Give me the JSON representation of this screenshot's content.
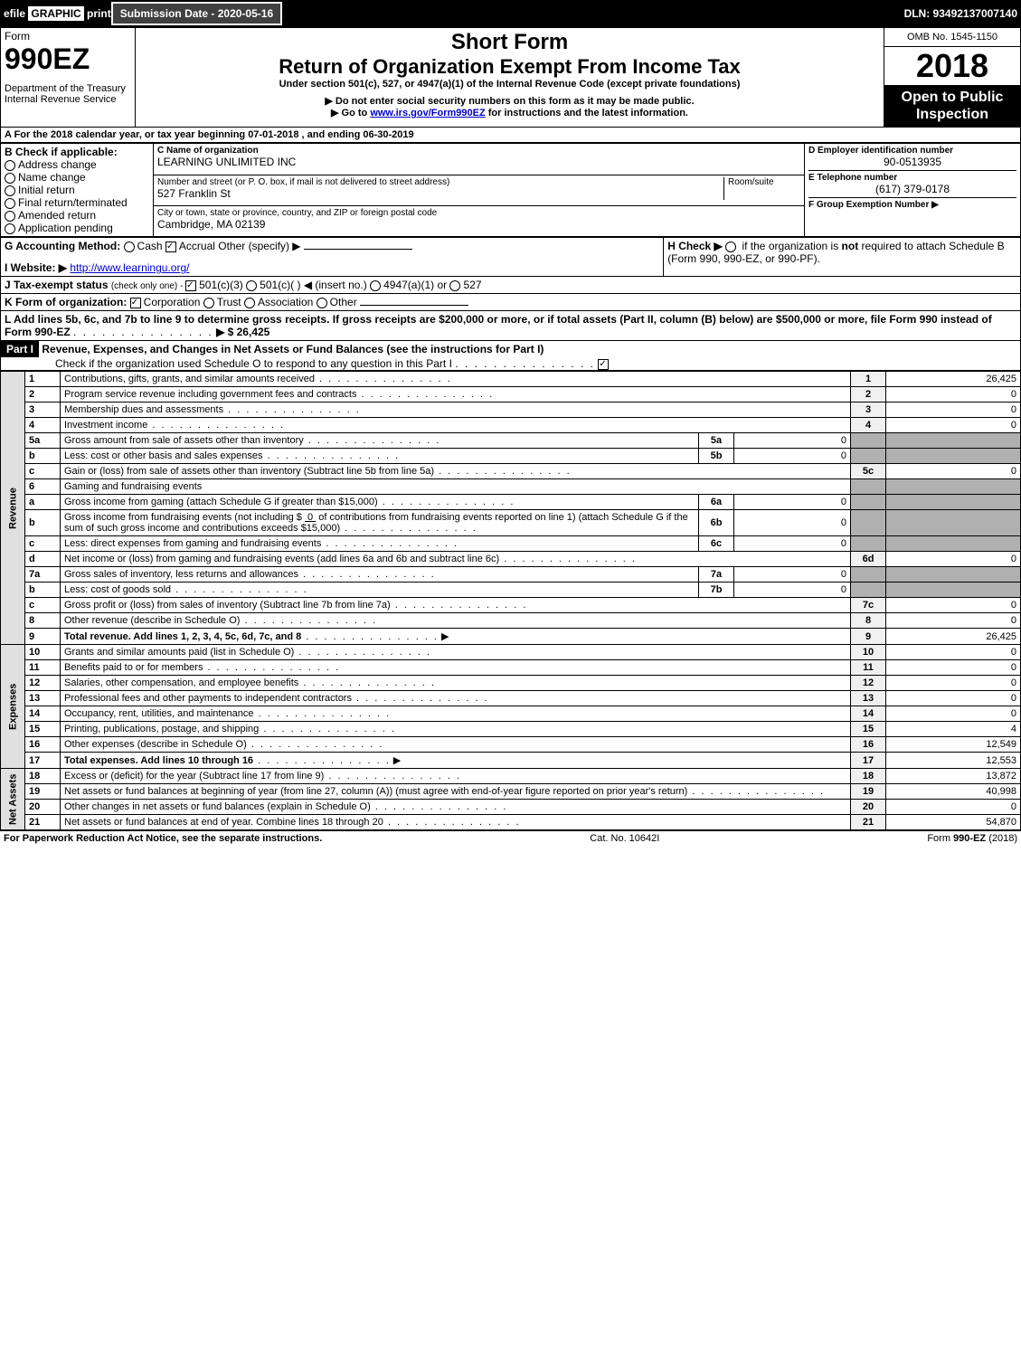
{
  "top": {
    "efile_prefix": "efile",
    "graphic": "GRAPHIC",
    "print": "print",
    "submission_label": "Submission Date - 2020-05-16",
    "dln_label": "DLN: 93492137007140"
  },
  "header": {
    "form_word": "Form",
    "form_no": "990EZ",
    "dept1": "Department of the Treasury",
    "dept2": "Internal Revenue Service",
    "short_form": "Short Form",
    "title": "Return of Organization Exempt From Income Tax",
    "subtitle": "Under section 501(c), 527, or 4947(a)(1) of the Internal Revenue Code (except private foundations)",
    "warn1": "▶ Do not enter social security numbers on this form as it may be made public.",
    "warn2_pre": "▶ Go to ",
    "warn2_link": "www.irs.gov/Form990EZ",
    "warn2_post": " for instructions and the latest information.",
    "omb": "OMB No. 1545-1150",
    "year": "2018",
    "open": "Open to Public Inspection"
  },
  "period": {
    "line": "A  For the 2018 calendar year, or tax year beginning 07-01-2018               , and ending 06-30-2019"
  },
  "boxB": {
    "label": "B  Check if applicable:",
    "options": [
      {
        "label": "Address change",
        "checked": false
      },
      {
        "label": "Name change",
        "checked": false
      },
      {
        "label": "Initial return",
        "checked": false
      },
      {
        "label": "Final return/terminated",
        "checked": false
      },
      {
        "label": "Amended return",
        "checked": false
      },
      {
        "label": "Application pending",
        "checked": false
      }
    ]
  },
  "boxC": {
    "name_label": "C Name of organization",
    "name_value": "LEARNING UNLIMITED INC",
    "street_label": "Number and street (or P. O. box, if mail is not delivered to street address)",
    "room_label": "Room/suite",
    "street_value": "527 Franklin St",
    "city_label": "City or town, state or province, country, and ZIP or foreign postal code",
    "city_value": "Cambridge, MA  02139"
  },
  "boxD": {
    "label": "D Employer identification number",
    "value": "90-0513935"
  },
  "boxE": {
    "label": "E Telephone number",
    "value": "(617) 379-0178"
  },
  "boxF": {
    "label": "F Group Exemption Number   ▶"
  },
  "lineG": {
    "label": "G Accounting Method:",
    "cash": "Cash",
    "accrual": "Accrual",
    "other": "Other (specify) ▶",
    "accrual_checked": true
  },
  "lineH": {
    "label": "H  Check ▶",
    "text1": "if the organization is ",
    "not": "not",
    "text2": " required to attach Schedule B (Form 990, 990-EZ, or 990-PF)."
  },
  "lineI": {
    "label": "I Website: ▶",
    "url": "http://www.learningu.org/"
  },
  "lineJ": {
    "label": "J Tax-exempt status",
    "hint": " (check only one) - ",
    "opt1": "501(c)(3)",
    "opt2": "501(c)( )",
    "insert": "◀ (insert no.)",
    "opt3": "4947(a)(1) or",
    "opt4": "527",
    "opt1_checked": true
  },
  "lineK": {
    "label": "K Form of organization:",
    "opts": [
      "Corporation",
      "Trust",
      "Association",
      "Other"
    ],
    "corp_checked": true
  },
  "lineL": {
    "text": "L Add lines 5b, 6c, and 7b to line 9 to determine gross receipts. If gross receipts are $200,000 or more, or if total assets (Part II, column (B) below) are $500,000 or more, file Form 990 instead of Form 990-EZ",
    "arrow": "▶ $ 26,425"
  },
  "part1": {
    "label": "Part I",
    "title": "Revenue, Expenses, and Changes in Net Assets or Fund Balances (see the instructions for Part I)",
    "check_text": "Check if the organization used Schedule O to respond to any question in this Part I",
    "checked": true
  },
  "sections": {
    "revenue_label": "Revenue",
    "expenses_label": "Expenses",
    "netassets_label": "Net Assets"
  },
  "lines": [
    {
      "n": "1",
      "desc": "Contributions, gifts, grants, and similar amounts received",
      "ln": "1",
      "val": "26,425"
    },
    {
      "n": "2",
      "desc": "Program service revenue including government fees and contracts",
      "ln": "2",
      "val": "0"
    },
    {
      "n": "3",
      "desc": "Membership dues and assessments",
      "ln": "3",
      "val": "0"
    },
    {
      "n": "4",
      "desc": "Investment income",
      "ln": "4",
      "val": "0"
    },
    {
      "n": "5a",
      "desc": "Gross amount from sale of assets other than inventory",
      "sub": "5a",
      "subval": "0"
    },
    {
      "n": "b",
      "desc": "Less: cost or other basis and sales expenses",
      "sub": "5b",
      "subval": "0"
    },
    {
      "n": "c",
      "desc": "Gain or (loss) from sale of assets other than inventory (Subtract line 5b from line 5a)",
      "ln": "5c",
      "val": "0"
    },
    {
      "n": "6",
      "desc": "Gaming and fundraising events"
    },
    {
      "n": "a",
      "desc": "Gross income from gaming (attach Schedule G if greater than $15,000)",
      "sub": "6a",
      "subval": "0"
    },
    {
      "n": "b",
      "desc_html": "Gross income from fundraising events (not including $ <u>&nbsp;0&nbsp;</u>              of contributions from fundraising events reported on line 1) (attach Schedule G if the sum of such gross income and contributions exceeds $15,000)",
      "sub": "6b",
      "subval": "0"
    },
    {
      "n": "c",
      "desc": "Less: direct expenses from gaming and fundraising events",
      "sub": "6c",
      "subval": "0"
    },
    {
      "n": "d",
      "desc": "Net income or (loss) from gaming and fundraising events (add lines 6a and 6b and subtract line 6c)",
      "ln": "6d",
      "val": "0"
    },
    {
      "n": "7a",
      "desc": "Gross sales of inventory, less returns and allowances",
      "sub": "7a",
      "subval": "0"
    },
    {
      "n": "b",
      "desc": "Less: cost of goods sold",
      "sub": "7b",
      "subval": "0"
    },
    {
      "n": "c",
      "desc": "Gross profit or (loss) from sales of inventory (Subtract line 7b from line 7a)",
      "ln": "7c",
      "val": "0"
    },
    {
      "n": "8",
      "desc": "Other revenue (describe in Schedule O)",
      "ln": "8",
      "val": "0"
    },
    {
      "n": "9",
      "desc": "Total revenue. Add lines 1, 2, 3, 4, 5c, 6d, 7c, and 8",
      "ln": "9",
      "val": "26,425",
      "bold": true,
      "arrow": true
    }
  ],
  "exp_lines": [
    {
      "n": "10",
      "desc": "Grants and similar amounts paid (list in Schedule O)",
      "ln": "10",
      "val": "0"
    },
    {
      "n": "11",
      "desc": "Benefits paid to or for members",
      "ln": "11",
      "val": "0"
    },
    {
      "n": "12",
      "desc": "Salaries, other compensation, and employee benefits",
      "ln": "12",
      "val": "0"
    },
    {
      "n": "13",
      "desc": "Professional fees and other payments to independent contractors",
      "ln": "13",
      "val": "0"
    },
    {
      "n": "14",
      "desc": "Occupancy, rent, utilities, and maintenance",
      "ln": "14",
      "val": "0"
    },
    {
      "n": "15",
      "desc": "Printing, publications, postage, and shipping",
      "ln": "15",
      "val": "4"
    },
    {
      "n": "16",
      "desc": "Other expenses (describe in Schedule O)",
      "ln": "16",
      "val": "12,549"
    },
    {
      "n": "17",
      "desc": "Total expenses. Add lines 10 through 16",
      "ln": "17",
      "val": "12,553",
      "bold": true,
      "arrow": true
    }
  ],
  "na_lines": [
    {
      "n": "18",
      "desc": "Excess or (deficit) for the year (Subtract line 17 from line 9)",
      "ln": "18",
      "val": "13,872"
    },
    {
      "n": "19",
      "desc": "Net assets or fund balances at beginning of year (from line 27, column (A)) (must agree with end-of-year figure reported on prior year's return)",
      "ln": "19",
      "val": "40,998"
    },
    {
      "n": "20",
      "desc": "Other changes in net assets or fund balances (explain in Schedule O)",
      "ln": "20",
      "val": "0"
    },
    {
      "n": "21",
      "desc": "Net assets or fund balances at end of year. Combine lines 18 through 20",
      "ln": "21",
      "val": "54,870"
    }
  ],
  "footer": {
    "left": "For Paperwork Reduction Act Notice, see the separate instructions.",
    "mid": "Cat. No. 10642I",
    "right": "Form 990-EZ (2018)"
  }
}
